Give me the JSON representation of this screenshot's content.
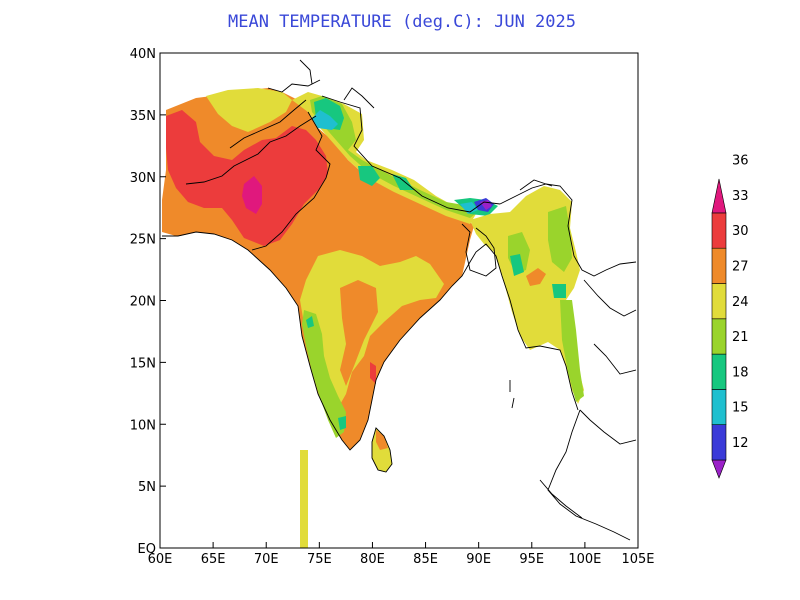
{
  "title": "MEAN TEMPERATURE (deg.C): JUN 2025",
  "map": {
    "lon_range": [
      60,
      105
    ],
    "lat_range": [
      0,
      40
    ],
    "x_ticks": [
      "60E",
      "65E",
      "70E",
      "75E",
      "80E",
      "85E",
      "90E",
      "95E",
      "100E",
      "105E"
    ],
    "y_ticks": [
      "EQ",
      "5N",
      "10N",
      "15N",
      "20N",
      "25N",
      "30N",
      "35N",
      "40N"
    ]
  },
  "colorbar": {
    "labels": [
      "12",
      "15",
      "18",
      "21",
      "24",
      "27",
      "30",
      "33",
      "36"
    ],
    "colors": [
      "#9b21c8",
      "#3a3ad8",
      "#1fbfcf",
      "#17c77f",
      "#9ad42c",
      "#e1dc3a",
      "#ef8a2a",
      "#ec3c3c",
      "#e0187d"
    ]
  },
  "regions_colors": {
    "warm": "#ef8a2a",
    "hot": "#ec3c3c",
    "very_hot": "#e0187d",
    "mild": "#e1dc3a",
    "cool": "#9ad42c",
    "cooler": "#17c77f",
    "cold": "#1fbfcf",
    "very_cold": "#3a3ad8"
  }
}
